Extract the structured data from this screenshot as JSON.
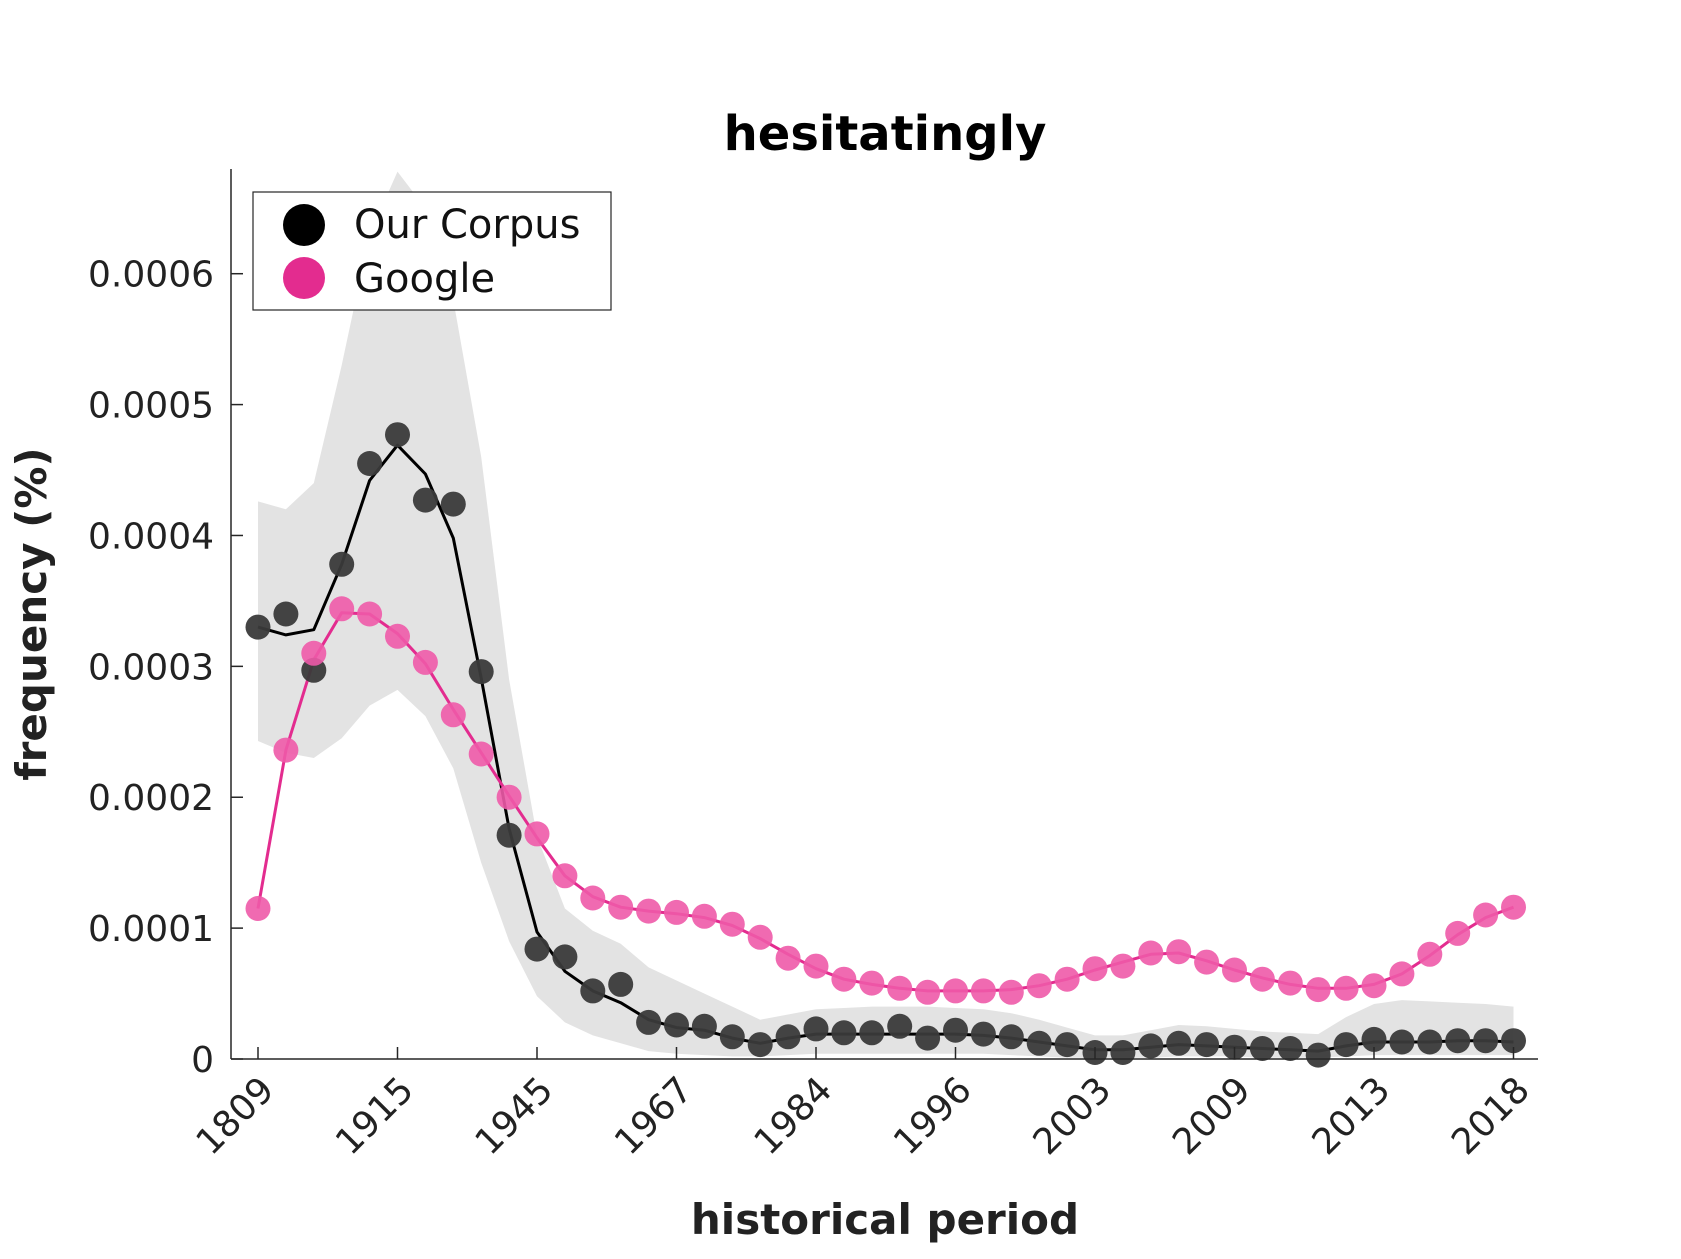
{
  "colors": {
    "corpus": "#000000",
    "corpus_dots": "#3a3a3a",
    "google": "#e32c8f",
    "google_dots": "#ee5aa9",
    "band": "#e3e3e3"
  },
  "chart_data": {
    "type": "line",
    "title": "hesitatingly",
    "xlabel": "historical period",
    "ylabel": "frequency (%)",
    "x_tick_labels": [
      "1809",
      "1915",
      "1945",
      "1967",
      "1984",
      "1996",
      "2003",
      "2009",
      "2013",
      "2018"
    ],
    "x_tick_indices": [
      0,
      5,
      10,
      15,
      20,
      25,
      30,
      35,
      40,
      45
    ],
    "y_ticks": [
      0,
      0.0001,
      0.0002,
      0.0003,
      0.0004,
      0.0005,
      0.0006
    ],
    "y_tick_labels": [
      "0",
      "0.0001",
      "0.0002",
      "0.0003",
      "0.0004",
      "0.0005",
      "0.0006"
    ],
    "ylim": [
      0,
      0.00068
    ],
    "grid": false,
    "legend_position": "top-left",
    "series": [
      {
        "name": "Our Corpus",
        "points": [
          0.00033,
          0.00034,
          0.000297,
          0.000378,
          0.000455,
          0.000477,
          0.000427,
          0.000424,
          0.000296,
          0.000171,
          8.4e-05,
          7.8e-05,
          5.2e-05,
          5.7e-05,
          2.8e-05,
          2.6e-05,
          2.5e-05,
          1.7e-05,
          1.1e-05,
          1.7e-05,
          2.3e-05,
          2e-05,
          2e-05,
          2.5e-05,
          1.6e-05,
          2.2e-05,
          1.9e-05,
          1.7e-05,
          1.2e-05,
          1.1e-05,
          5e-06,
          5e-06,
          1e-05,
          1.2e-05,
          1.1e-05,
          9e-06,
          8e-06,
          8e-06,
          3e-06,
          1.1e-05,
          1.5e-05,
          1.3e-05,
          1.3e-05,
          1.4e-05,
          1.4e-05,
          1.4e-05
        ],
        "smoothed": [
          0.00033,
          0.000324,
          0.000328,
          0.000378,
          0.000442,
          0.000469,
          0.000447,
          0.000398,
          0.000291,
          0.000176,
          9.7e-05,
          6.7e-05,
          5.2e-05,
          4.3e-05,
          3e-05,
          2.4e-05,
          2.2e-05,
          1.6e-05,
          1.2e-05,
          1.6e-05,
          1.9e-05,
          1.9e-05,
          1.9e-05,
          1.9e-05,
          1.9e-05,
          1.9e-05,
          1.8e-05,
          1.6e-05,
          1.3e-05,
          1e-05,
          7e-06,
          7e-06,
          9e-06,
          1.1e-05,
          1e-05,
          9e-06,
          8e-06,
          7e-06,
          6e-06,
          1e-05,
          1.3e-05,
          1.3e-05,
          1.3e-05,
          1.4e-05,
          1.4e-05,
          1.3e-05
        ],
        "band_upper": [
          0.000426,
          0.00042,
          0.00044,
          0.00053,
          0.00063,
          0.000678,
          0.00065,
          0.00058,
          0.00046,
          0.00029,
          0.00017,
          0.000115,
          9.8e-05,
          8.8e-05,
          7e-05,
          6e-05,
          5e-05,
          4e-05,
          3e-05,
          3.4e-05,
          3.8e-05,
          3.9e-05,
          4e-05,
          4e-05,
          4e-05,
          3.9e-05,
          3.8e-05,
          3.5e-05,
          3e-05,
          2.4e-05,
          1.8e-05,
          1.8e-05,
          2.2e-05,
          2.6e-05,
          2.5e-05,
          2.3e-05,
          2.1e-05,
          2e-05,
          1.9e-05,
          3.2e-05,
          4.2e-05,
          4.5e-05,
          4.4e-05,
          4.3e-05,
          4.2e-05,
          4e-05
        ],
        "band_lower": [
          0.000243,
          0.000234,
          0.00023,
          0.000245,
          0.00027,
          0.000282,
          0.000262,
          0.000222,
          0.00015,
          9e-05,
          4.8e-05,
          2.8e-05,
          1.8e-05,
          1.2e-05,
          6e-06,
          4e-06,
          3e-06,
          2e-06,
          2e-06,
          3e-06,
          4e-06,
          4e-06,
          4e-06,
          4e-06,
          4e-06,
          4e-06,
          4e-06,
          3e-06,
          2e-06,
          1e-06,
          1e-06,
          1e-06,
          1e-06,
          2e-06,
          2e-06,
          2e-06,
          1e-06,
          1e-06,
          1e-06,
          2e-06,
          3e-06,
          3e-06,
          3e-06,
          3e-06,
          3e-06,
          3e-06
        ]
      },
      {
        "name": "Google",
        "points": [
          0.000115,
          0.000236,
          0.00031,
          0.000344,
          0.00034,
          0.000323,
          0.000303,
          0.000263,
          0.000233,
          0.0002,
          0.000172,
          0.00014,
          0.000123,
          0.000116,
          0.000113,
          0.000112,
          0.000109,
          0.000103,
          9.3e-05,
          7.7e-05,
          7.1e-05,
          6.1e-05,
          5.8e-05,
          5.4e-05,
          5.1e-05,
          5.2e-05,
          5.2e-05,
          5.1e-05,
          5.6e-05,
          6.1e-05,
          6.9e-05,
          7.1e-05,
          8.1e-05,
          8.2e-05,
          7.4e-05,
          6.8e-05,
          6.1e-05,
          5.8e-05,
          5.3e-05,
          5.4e-05,
          5.6e-05,
          6.5e-05,
          8e-05,
          9.6e-05,
          0.00011,
          0.000116
        ],
        "smoothed": [
          0.000115,
          0.000236,
          0.000305,
          0.000341,
          0.00034,
          0.000325,
          0.000302,
          0.000267,
          0.000234,
          0.000201,
          0.000169,
          0.00014,
          0.000124,
          0.000116,
          0.000113,
          0.000111,
          0.000108,
          0.000102,
          9.2e-05,
          8e-05,
          6.9e-05,
          6.1e-05,
          5.7e-05,
          5.4e-05,
          5.2e-05,
          5.2e-05,
          5.2e-05,
          5.3e-05,
          5.6e-05,
          6.1e-05,
          6.8e-05,
          7.4e-05,
          8e-05,
          8.1e-05,
          7.5e-05,
          6.8e-05,
          6.2e-05,
          5.7e-05,
          5.4e-05,
          5.4e-05,
          5.7e-05,
          6.5e-05,
          7.9e-05,
          9.5e-05,
          0.000108,
          0.000116
        ]
      }
    ]
  }
}
